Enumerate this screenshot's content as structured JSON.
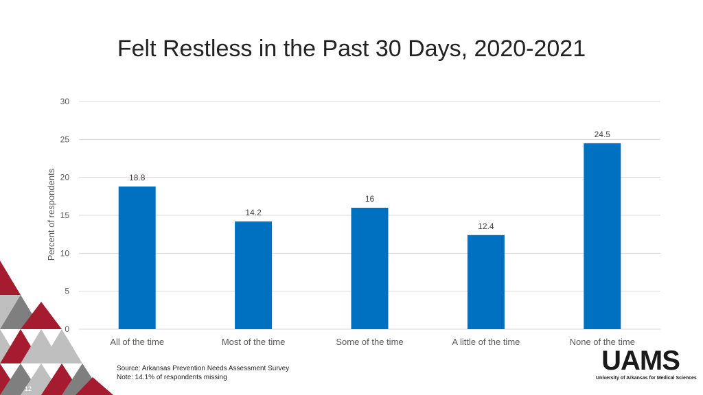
{
  "slide": {
    "title": "Felt Restless in the Past 30 Days, 2020-2021",
    "source": "Source: Arkansas Prevention Needs Assessment Survey",
    "note": "Note: 14.1% of respondents missing",
    "page_number": "12",
    "logo_text": "UAMS",
    "logo_subtext": "University of Arkansas for Medical Sciences"
  },
  "colors": {
    "bar": "#0070C0",
    "gridline": "#D9D9D9",
    "decor_red": "#A51C30",
    "decor_gray": "#BFBFBF",
    "decor_dark": "#7F7F7F"
  },
  "chart_data": {
    "type": "bar",
    "categories": [
      "All of the time",
      "Most of the time",
      "Some of the time",
      "A little of the time",
      "None of the time"
    ],
    "values": [
      18.8,
      14.2,
      16,
      12.4,
      24.5
    ],
    "value_labels": [
      "18.8",
      "14.2",
      "16",
      "12.4",
      "24.5"
    ],
    "ylabel": "Percent of respondents",
    "xlabel": "",
    "ylim": [
      0,
      30
    ],
    "yticks": [
      0,
      5,
      10,
      15,
      20,
      25,
      30
    ],
    "grid": true,
    "legend": "none"
  }
}
